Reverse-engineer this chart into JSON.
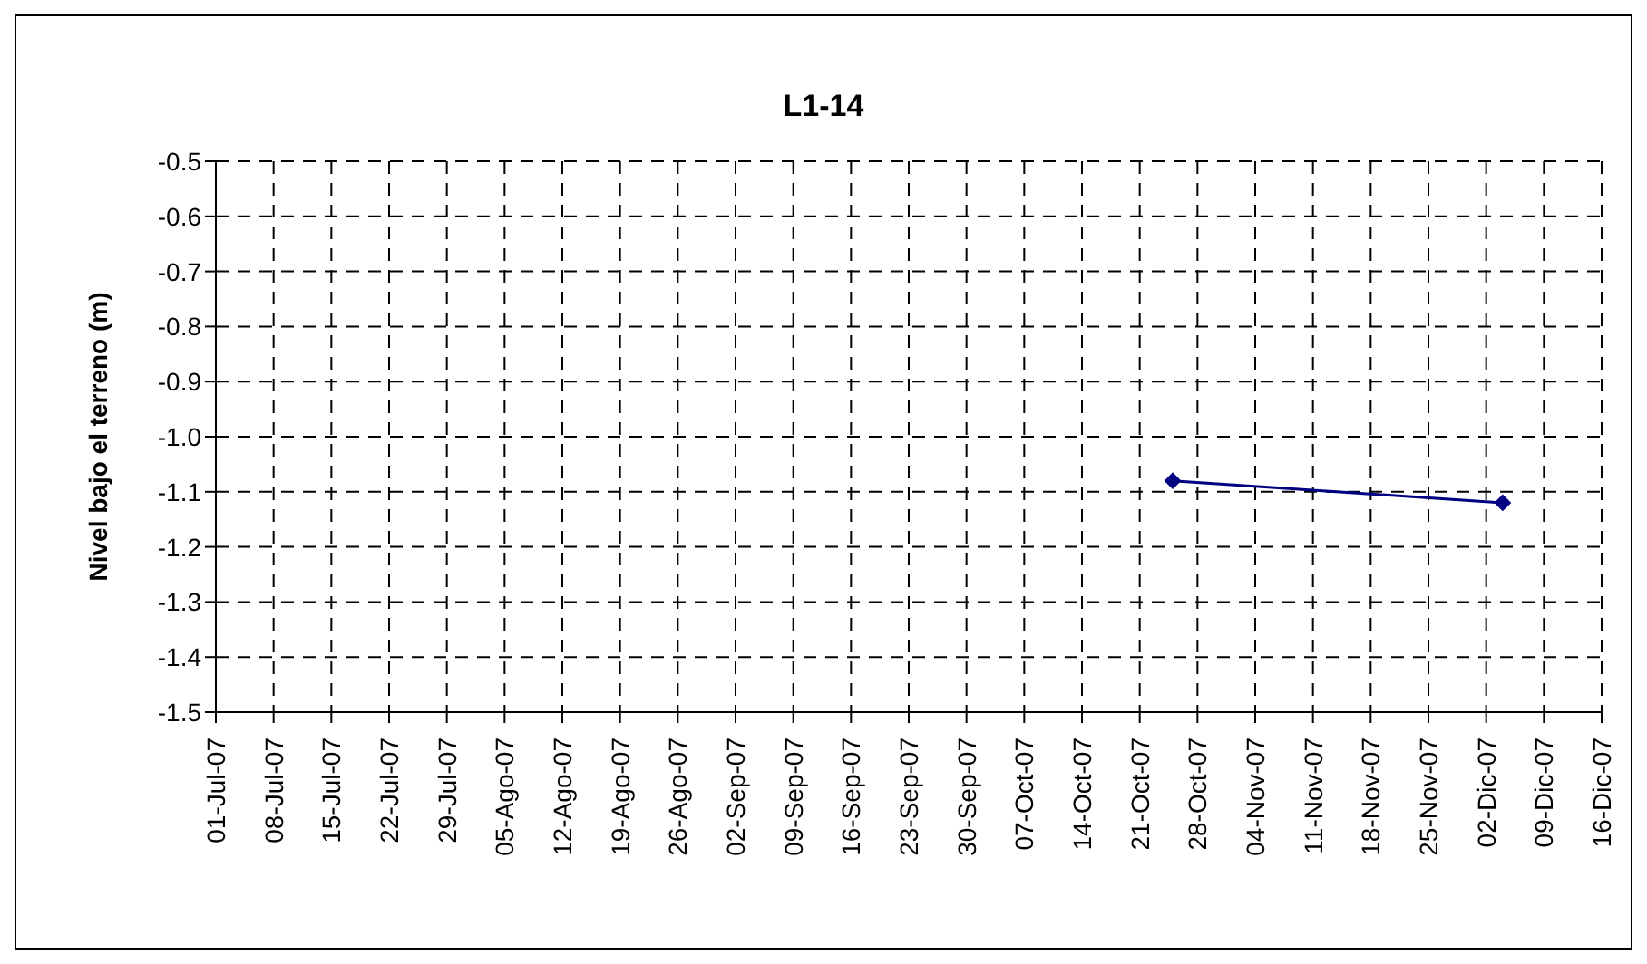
{
  "chart_data": {
    "type": "line",
    "title": "L1-14",
    "ylabel": "Nivel bajo el terreno (m)",
    "x": [
      "--10-25",
      "--12-04"
    ],
    "series": [
      {
        "color": "#000080",
        "values": [
          -1.08,
          -1.12
        ]
      }
    ],
    "xlim": [
      "--07-01",
      "--12-16"
    ],
    "xticks": [
      {
        "value": "--07-01",
        "label": "01-Jul-07"
      },
      {
        "value": "--07-08",
        "label": "08-Jul-07"
      },
      {
        "value": "--07-15",
        "label": "15-Jul-07"
      },
      {
        "value": "--07-22",
        "label": "22-Jul-07"
      },
      {
        "value": "--07-29",
        "label": "29-Jul-07"
      },
      {
        "value": "--08-05",
        "label": "05-Ago-07"
      },
      {
        "value": "--08-12",
        "label": "12-Ago-07"
      },
      {
        "value": "--08-19",
        "label": "19-Ago-07"
      },
      {
        "value": "--08-26",
        "label": "26-Ago-07"
      },
      {
        "value": "--09-02",
        "label": "02-Sep-07"
      },
      {
        "value": "--09-09",
        "label": "09-Sep-07"
      },
      {
        "value": "--09-16",
        "label": "16-Sep-07"
      },
      {
        "value": "--09-23",
        "label": "23-Sep-07"
      },
      {
        "value": "--09-30",
        "label": "30-Sep-07"
      },
      {
        "value": "--10-07",
        "label": "07-Oct-07"
      },
      {
        "value": "--10-14",
        "label": "14-Oct-07"
      },
      {
        "value": "--10-21",
        "label": "21-Oct-07"
      },
      {
        "value": "--10-28",
        "label": "28-Oct-07"
      },
      {
        "value": "--11-04",
        "label": "04-Nov-07"
      },
      {
        "value": "--11-11",
        "label": "11-Nov-07"
      },
      {
        "value": "--11-18",
        "label": "18-Nov-07"
      },
      {
        "value": "--11-25",
        "label": "25-Nov-07"
      },
      {
        "value": "--12-02",
        "label": "02-Dic-07"
      },
      {
        "value": "--12-09",
        "label": "09-Dic-07"
      },
      {
        "value": "--12-16",
        "label": "16-Dic-07"
      }
    ],
    "ylim": [
      -1.5,
      -0.5
    ],
    "yticks": [
      {
        "value": -1.5,
        "label": "-1.5"
      },
      {
        "value": -1.4,
        "label": "-1.4"
      },
      {
        "value": -1.3,
        "label": "-1.3"
      },
      {
        "value": -1.2,
        "label": "-1.2"
      },
      {
        "value": -1.1,
        "label": "-1.1"
      },
      {
        "value": -1.0,
        "label": "-1.0"
      },
      {
        "value": -0.9,
        "label": "-0.9"
      },
      {
        "value": -0.8,
        "label": "-0.8"
      },
      {
        "value": -0.7,
        "label": "-0.7"
      },
      {
        "value": -0.6,
        "label": "-0.6"
      },
      {
        "value": -0.5,
        "label": "-0.5"
      }
    ],
    "grid": true,
    "marker": "diamond",
    "line_style": "solid",
    "legend": false
  }
}
